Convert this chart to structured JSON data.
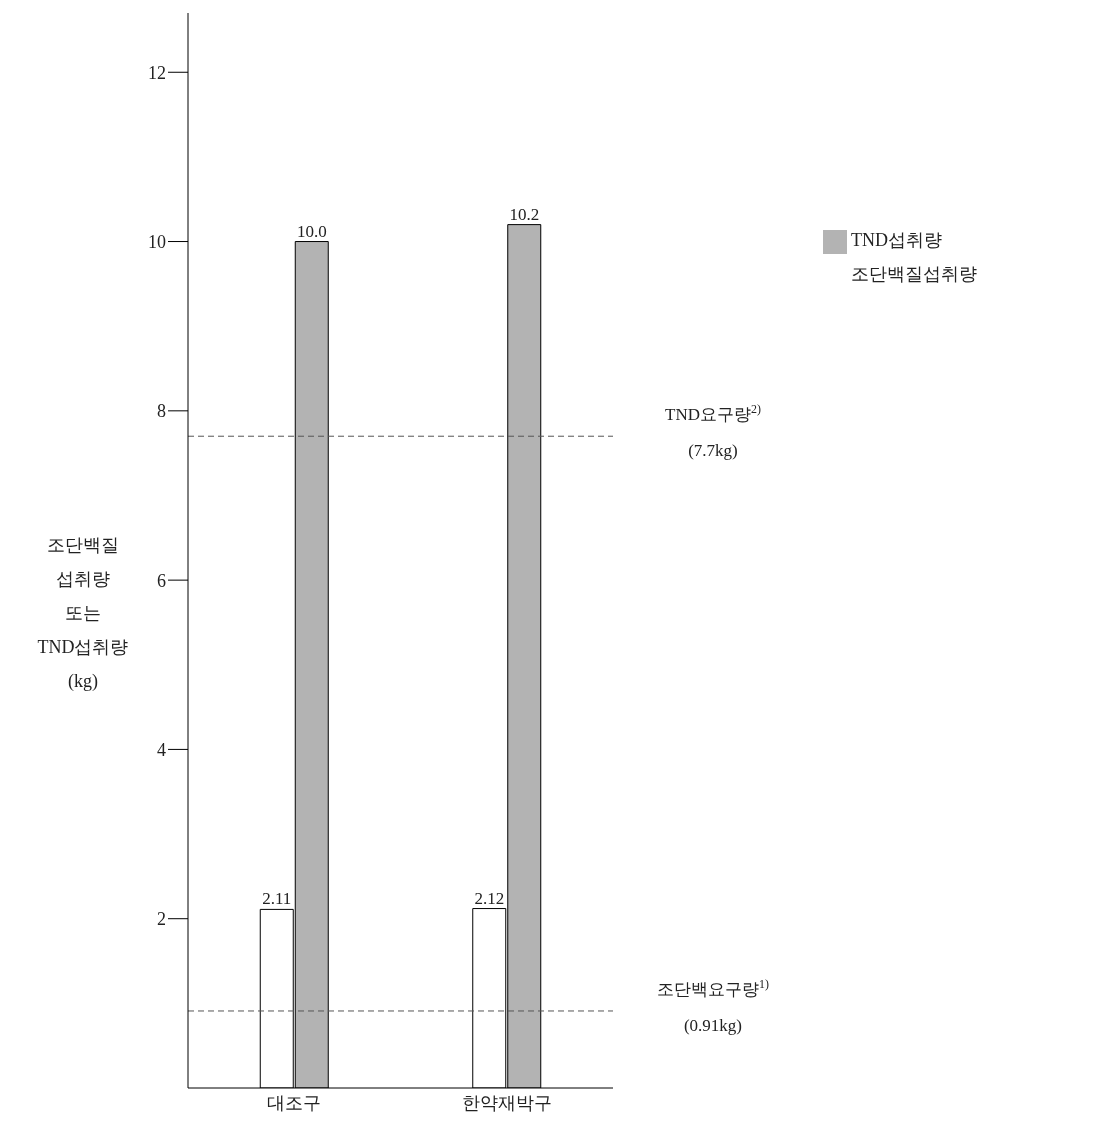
{
  "chart_data": {
    "type": "bar",
    "categories": [
      "대조구",
      "한약재박구"
    ],
    "series": [
      {
        "name": "조단백질섭취량",
        "color": "#ffffff",
        "values": [
          2.11,
          2.12
        ],
        "value_labels": [
          "2.11",
          "2.12"
        ]
      },
      {
        "name": "TND섭취량",
        "color": "#b3b3b3",
        "values": [
          10.0,
          10.2
        ],
        "value_labels": [
          "10.0",
          "10.2"
        ]
      }
    ],
    "ylabel": "조단백질\n섭취량\n또는\nTND섭취량\n(kg)",
    "ylim": [
      0,
      12.7
    ],
    "yticks": [
      2,
      4,
      6,
      8,
      10,
      12
    ],
    "legend": "top right",
    "ref_lines": [
      {
        "axis": "y",
        "value": 7.7,
        "label": "TND요구량$^{2)}$ (7.7kg)",
        "line_style": "dashed",
        "color": "#555555"
      },
      {
        "axis": "y",
        "value": 0.91,
        "label": "조단백요구량$^{1)}$ (0.91kg)",
        "line_style": "dashed",
        "color": "#555555"
      }
    ]
  }
}
